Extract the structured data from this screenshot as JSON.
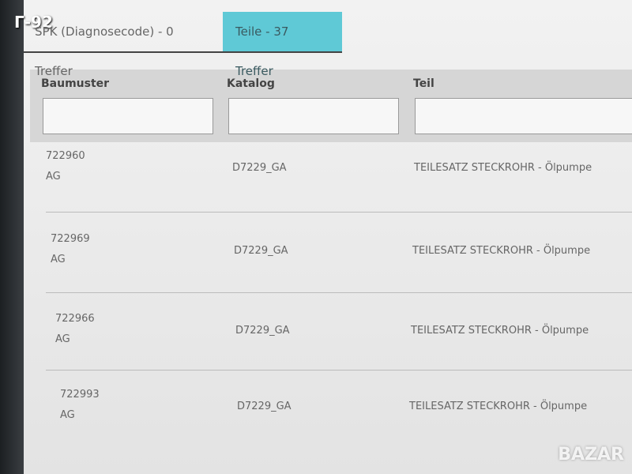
{
  "watermark": "Г-92",
  "logo": "BAZAR",
  "tabs": [
    {
      "label": "SPK (Diagnosecode) - 0 Treffer",
      "active": false
    },
    {
      "label": "Teile - 37 Treffer",
      "active": true
    }
  ],
  "filter": {
    "columns": [
      "Baumuster",
      "Katalog",
      "Teil"
    ]
  },
  "table": {
    "rows": [
      [
        "722960",
        "AG",
        "D7229_GA",
        "TEILESATZ STECKROHR - Ölpumpe"
      ],
      [
        "722969",
        "AG",
        "D7229_GA",
        "TEILESATZ STECKROHR - Ölpumpe"
      ],
      [
        "722966",
        "AG",
        "D7229_GA",
        "TEILESATZ STECKROHR - Ölpumpe"
      ],
      [
        "722993",
        "AG",
        "D7229_GA",
        "TEILESATZ STECKROHR - Ölpumpe"
      ]
    ]
  }
}
